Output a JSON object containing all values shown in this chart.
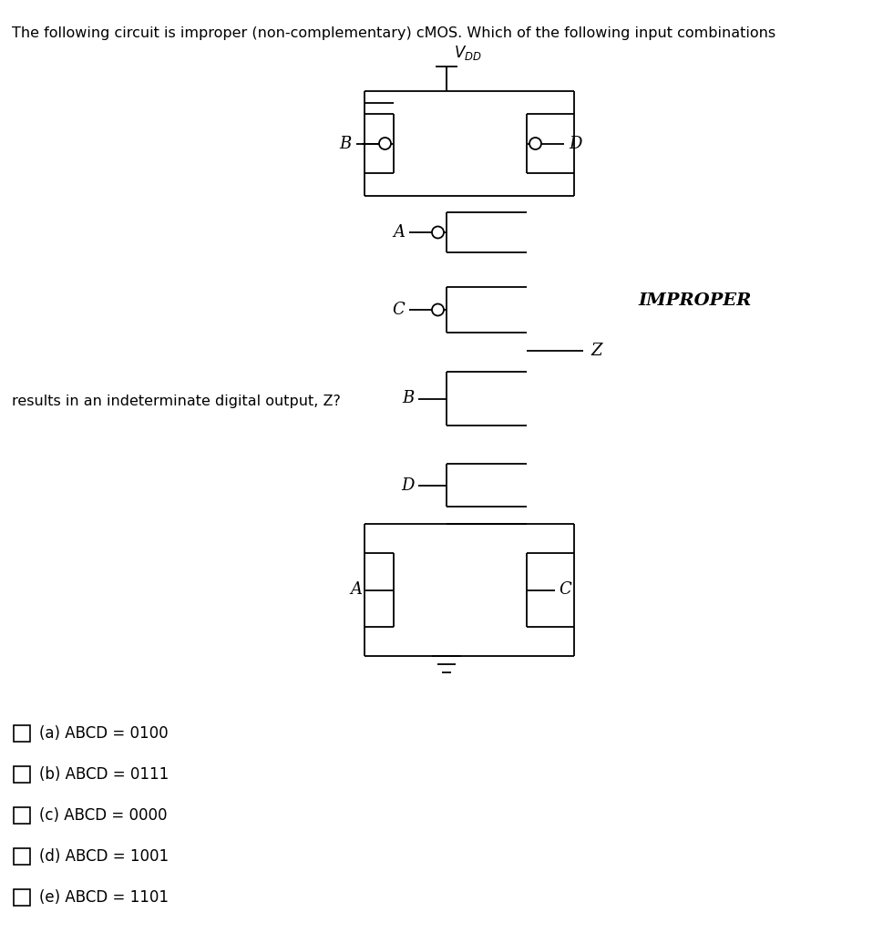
{
  "title_text": "The following circuit is improper (non-complementary) cMOS. Which of the following input combinations",
  "subtitle_text": "results in an indeterminate digital output, Z?",
  "improper_label": "IMPROPER",
  "z_label": "Z",
  "vdd_label": "$V_{DD}$",
  "choices": [
    "(a) ABCD = 0100",
    "(b) ABCD = 0111",
    "(c) ABCD = 0000",
    "(d) ABCD = 1001",
    "(e) ABCD = 1101"
  ],
  "bg_color": "#ffffff",
  "line_color": "#000000",
  "text_color": "#000000",
  "figsize": [
    9.58,
    10.24
  ],
  "dpi": 100
}
